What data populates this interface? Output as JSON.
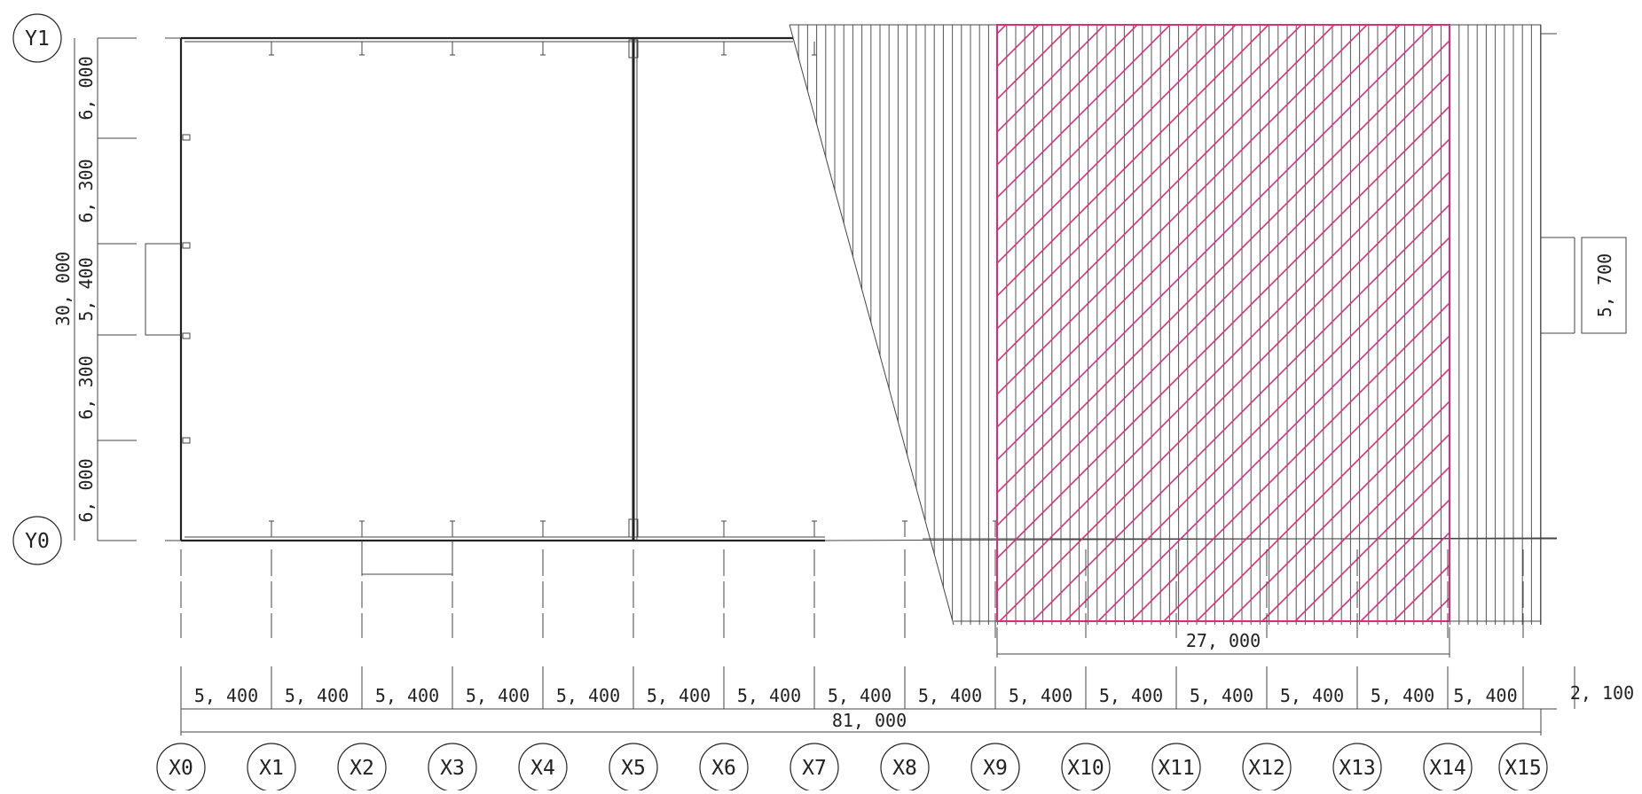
{
  "accent_colors": {
    "linework": "#222222",
    "hatch_fill": "#555555",
    "highlight_area": "#d4317a"
  },
  "grid": {
    "x_axes": [
      "X0",
      "X1",
      "X2",
      "X3",
      "X4",
      "X5",
      "X6",
      "X7",
      "X8",
      "X9",
      "X10",
      "X11",
      "X12",
      "X13",
      "X14",
      "X15"
    ],
    "y_axes": [
      "Y1",
      "Y0"
    ]
  },
  "dimensions": {
    "bottom_bays": [
      "5, 400",
      "5, 400",
      "5, 400",
      "5, 400",
      "5, 400",
      "5, 400",
      "5, 400",
      "5, 400",
      "5, 400",
      "5, 400",
      "5, 400",
      "5, 400",
      "5, 400",
      "5, 400",
      "5, 400"
    ],
    "extra_right": "2, 100",
    "overall_length": "81, 000",
    "highlight_length": "27, 000",
    "left_spans": [
      "6, 000",
      "6, 300",
      "5, 400",
      "6, 300",
      "6, 000"
    ],
    "overall_depth": "30, 000",
    "right_span": "5, 700"
  }
}
